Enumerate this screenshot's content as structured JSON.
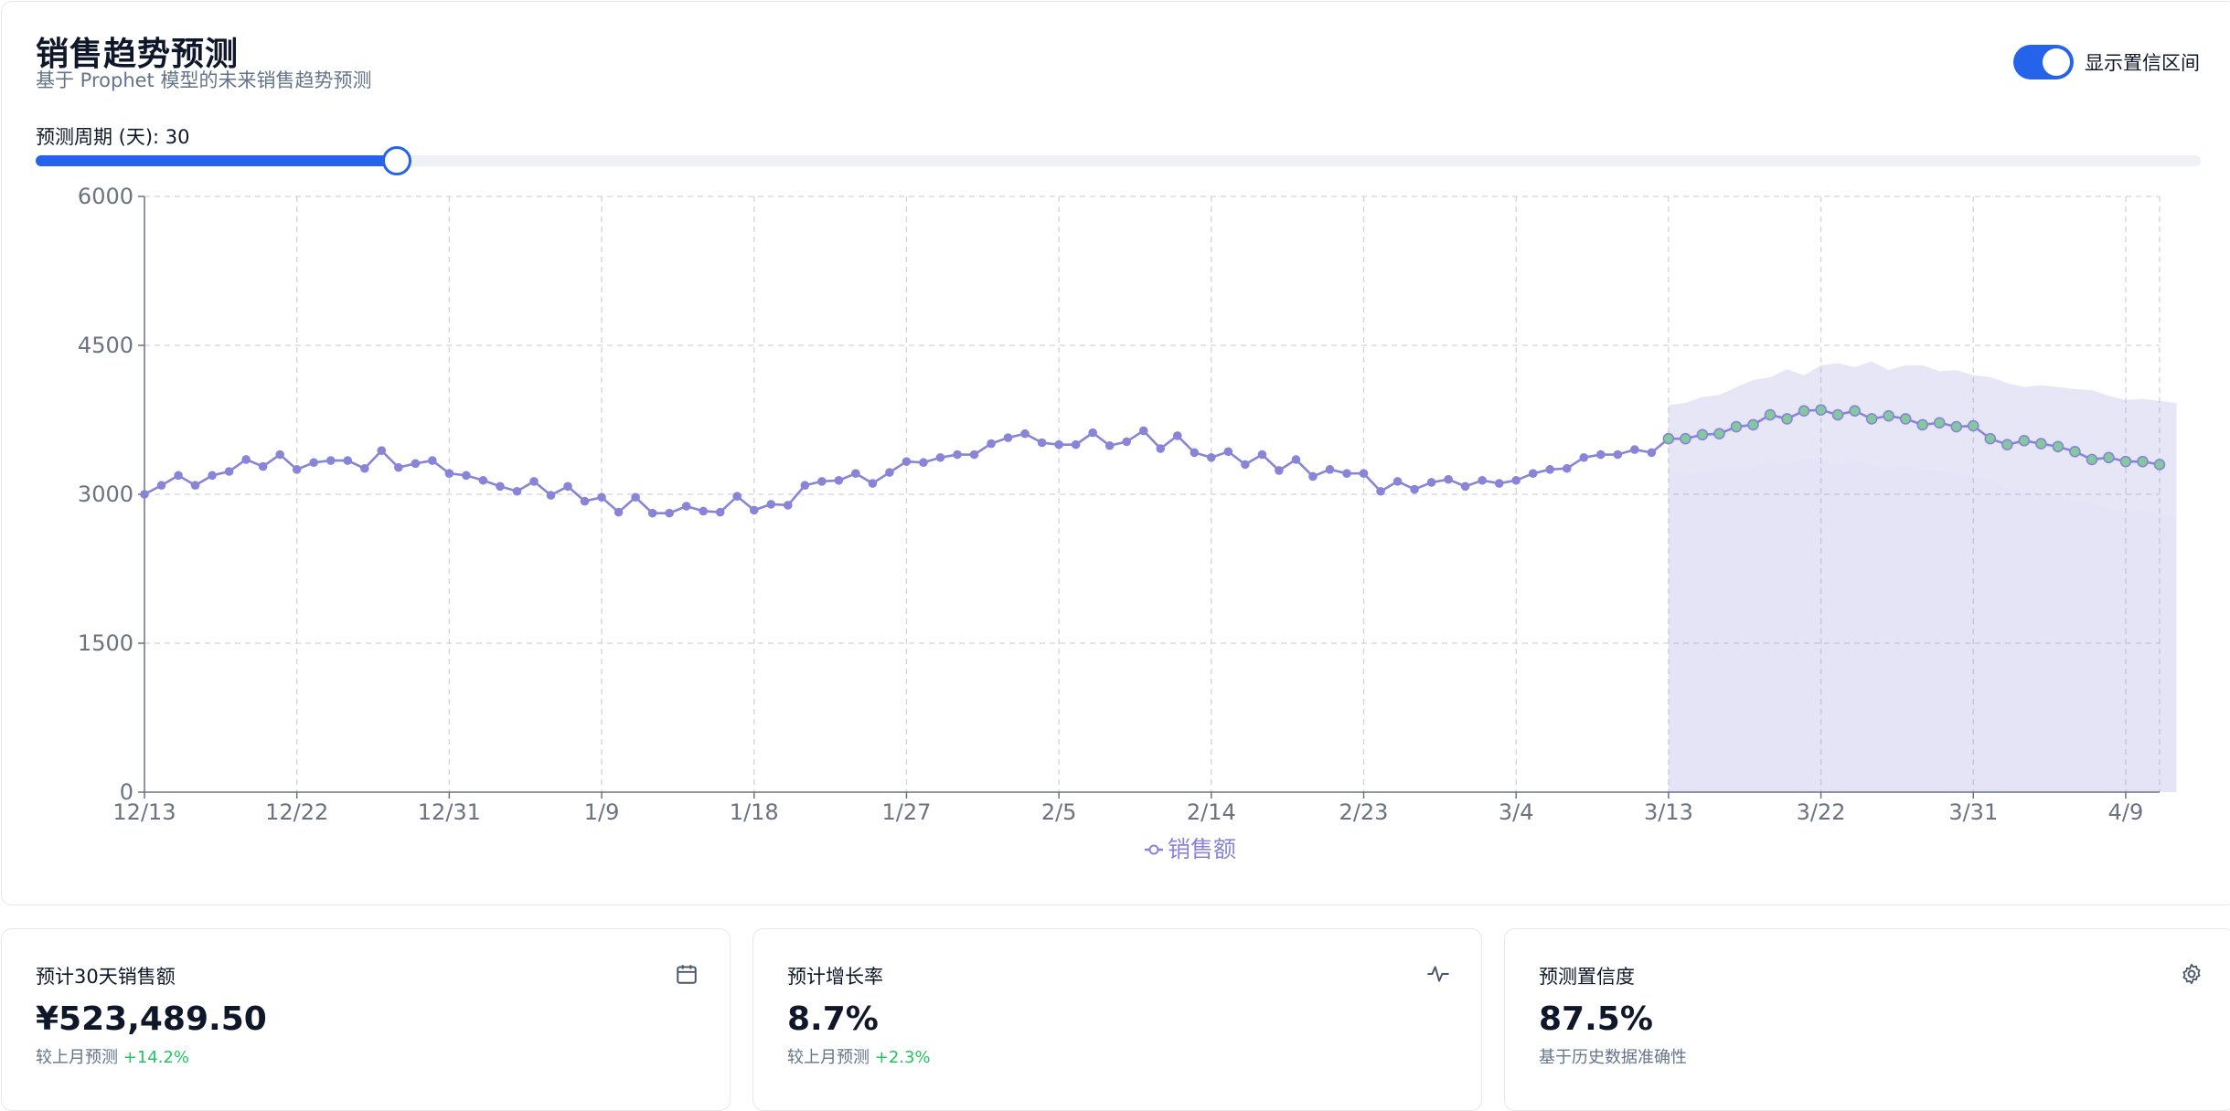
{
  "header": {
    "title": "销售趋势预测",
    "subtitle": "基于 Prophet 模型的未来销售趋势预测",
    "toggle_label": "显示置信区间",
    "toggle_on": true
  },
  "slider": {
    "label": "预测周期 (天): 30",
    "value": 30,
    "max": 180
  },
  "colors": {
    "accent": "#2563eb",
    "series": "#8884d8",
    "forecast_point": "#82ca9d",
    "band": "#8884d8",
    "growth": "#22c55e"
  },
  "chart_data": {
    "type": "line",
    "title": "",
    "xlabel": "",
    "ylabel": "",
    "ylim": [
      0,
      6000
    ],
    "yticks": [
      "0",
      "1500",
      "3000",
      "4500",
      "6000"
    ],
    "xticks": [
      "12/13",
      "12/22",
      "12/31",
      "1/9",
      "1/18",
      "1/27",
      "2/5",
      "2/14",
      "2/23",
      "3/4",
      "3/13",
      "3/22",
      "3/31",
      "4/9"
    ],
    "x_start": "12/13",
    "forecast_start_index": 90,
    "legend": [
      "销售额"
    ],
    "grid": true,
    "series": [
      {
        "name": "销售额",
        "values": [
          3000,
          3090,
          3190,
          3090,
          3190,
          3230,
          3350,
          3280,
          3400,
          3250,
          3320,
          3340,
          3340,
          3260,
          3440,
          3270,
          3310,
          3340,
          3210,
          3190,
          3140,
          3080,
          3030,
          3130,
          2990,
          3080,
          2930,
          2970,
          2820,
          2970,
          2810,
          2810,
          2880,
          2830,
          2820,
          2980,
          2840,
          2900,
          2890,
          3090,
          3130,
          3140,
          3210,
          3110,
          3220,
          3330,
          3320,
          3370,
          3400,
          3400,
          3510,
          3570,
          3610,
          3520,
          3500,
          3500,
          3620,
          3490,
          3530,
          3640,
          3460,
          3590,
          3420,
          3370,
          3430,
          3300,
          3400,
          3240,
          3350,
          3180,
          3250,
          3210,
          3210,
          3030,
          3130,
          3050,
          3120,
          3150,
          3080,
          3140,
          3110,
          3140,
          3210,
          3250,
          3260,
          3370,
          3400,
          3400,
          3450,
          3420,
          3560,
          3560,
          3600,
          3610,
          3680,
          3700,
          3800,
          3760,
          3840,
          3850,
          3800,
          3840,
          3760,
          3790,
          3760,
          3700,
          3720,
          3680,
          3690,
          3560,
          3500,
          3540,
          3510,
          3480,
          3430,
          3350,
          3370,
          3330,
          3330,
          3300
        ]
      }
    ],
    "confidence_upper": [
      3900,
      3920,
      3980,
      4000,
      4080,
      4150,
      4180,
      4260,
      4200,
      4300,
      4320,
      4280,
      4340,
      4250,
      4300,
      4300,
      4240,
      4250,
      4200,
      4180,
      4120,
      4080,
      4100,
      4080,
      4060,
      4050,
      3990,
      3950,
      3960,
      3940,
      3920
    ],
    "confidence_lower": [
      3240,
      3200,
      3220,
      3260,
      3250,
      3290,
      3330,
      3300,
      3360,
      3330,
      3300,
      3350,
      3290,
      3260,
      3300,
      3240,
      3240,
      3200,
      3180,
      3140,
      3060,
      3020,
      3000,
      2980,
      2940,
      2900,
      2860,
      2820,
      2840,
      2800,
      2780
    ]
  },
  "stats": [
    {
      "title": "预计30天销售额",
      "icon": "calendar-icon",
      "value": "¥523,489.50",
      "note": "较上月预测",
      "delta": "+14.2%"
    },
    {
      "title": "预计增长率",
      "icon": "activity-icon",
      "value": "8.7%",
      "note": "较上月预测",
      "delta": "+2.3%"
    },
    {
      "title": "预测置信度",
      "icon": "gear-icon",
      "value": "87.5%",
      "note": "基于历史数据准确性",
      "delta": ""
    }
  ]
}
